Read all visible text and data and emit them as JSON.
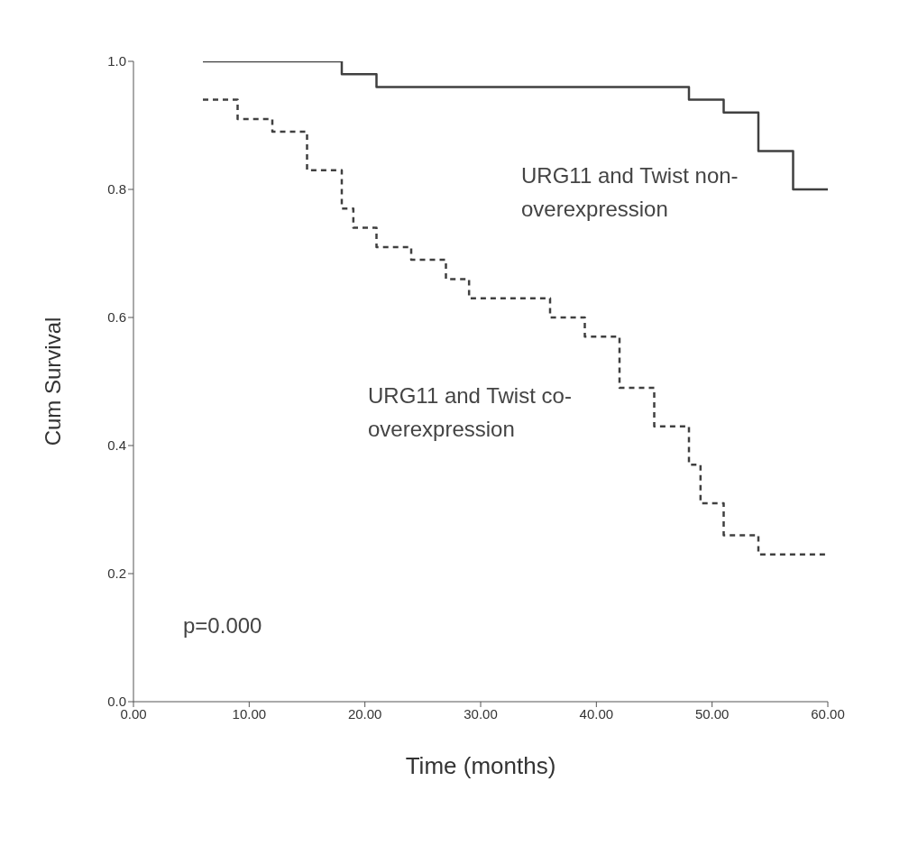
{
  "chart_data": {
    "type": "step",
    "xlabel": "Time (months)",
    "ylabel": "Cum Survival",
    "xlim": [
      0,
      60
    ],
    "ylim": [
      0,
      1
    ],
    "xticks": [
      {
        "value": 0,
        "label": "0.00"
      },
      {
        "value": 10,
        "label": "10.00"
      },
      {
        "value": 20,
        "label": "20.00"
      },
      {
        "value": 30,
        "label": "30.00"
      },
      {
        "value": 40,
        "label": "40.00"
      },
      {
        "value": 50,
        "label": "50.00"
      },
      {
        "value": 60,
        "label": "60.00"
      }
    ],
    "yticks": [
      {
        "value": 0,
        "label": "0.0"
      },
      {
        "value": 0.2,
        "label": "0.2"
      },
      {
        "value": 0.4,
        "label": "0.4"
      },
      {
        "value": 0.6,
        "label": "0.6"
      },
      {
        "value": 0.8,
        "label": "0.8"
      },
      {
        "value": 1,
        "label": "1.0"
      }
    ],
    "grid": false,
    "legend": false,
    "annotations": [
      "p=0.000"
    ],
    "series": [
      {
        "name": "URG11 and Twist non-overexpression",
        "color": "#404040",
        "line_style": "solid",
        "x": [
          6,
          18,
          21,
          48,
          51,
          54,
          57,
          60
        ],
        "values": [
          1.0,
          0.98,
          0.96,
          0.94,
          0.92,
          0.86,
          0.8,
          0.8
        ]
      },
      {
        "name": "URG11 and Twist co-overexpression",
        "color": "#404040",
        "line_style": "dashed",
        "x": [
          6,
          9,
          12,
          15,
          18,
          19,
          21,
          24,
          27,
          29,
          36,
          39,
          42,
          45,
          48,
          49,
          51,
          54,
          60
        ],
        "values": [
          0.94,
          0.91,
          0.89,
          0.83,
          0.77,
          0.74,
          0.71,
          0.69,
          0.66,
          0.63,
          0.6,
          0.57,
          0.49,
          0.43,
          0.37,
          0.31,
          0.26,
          0.23,
          0.23
        ]
      }
    ]
  }
}
